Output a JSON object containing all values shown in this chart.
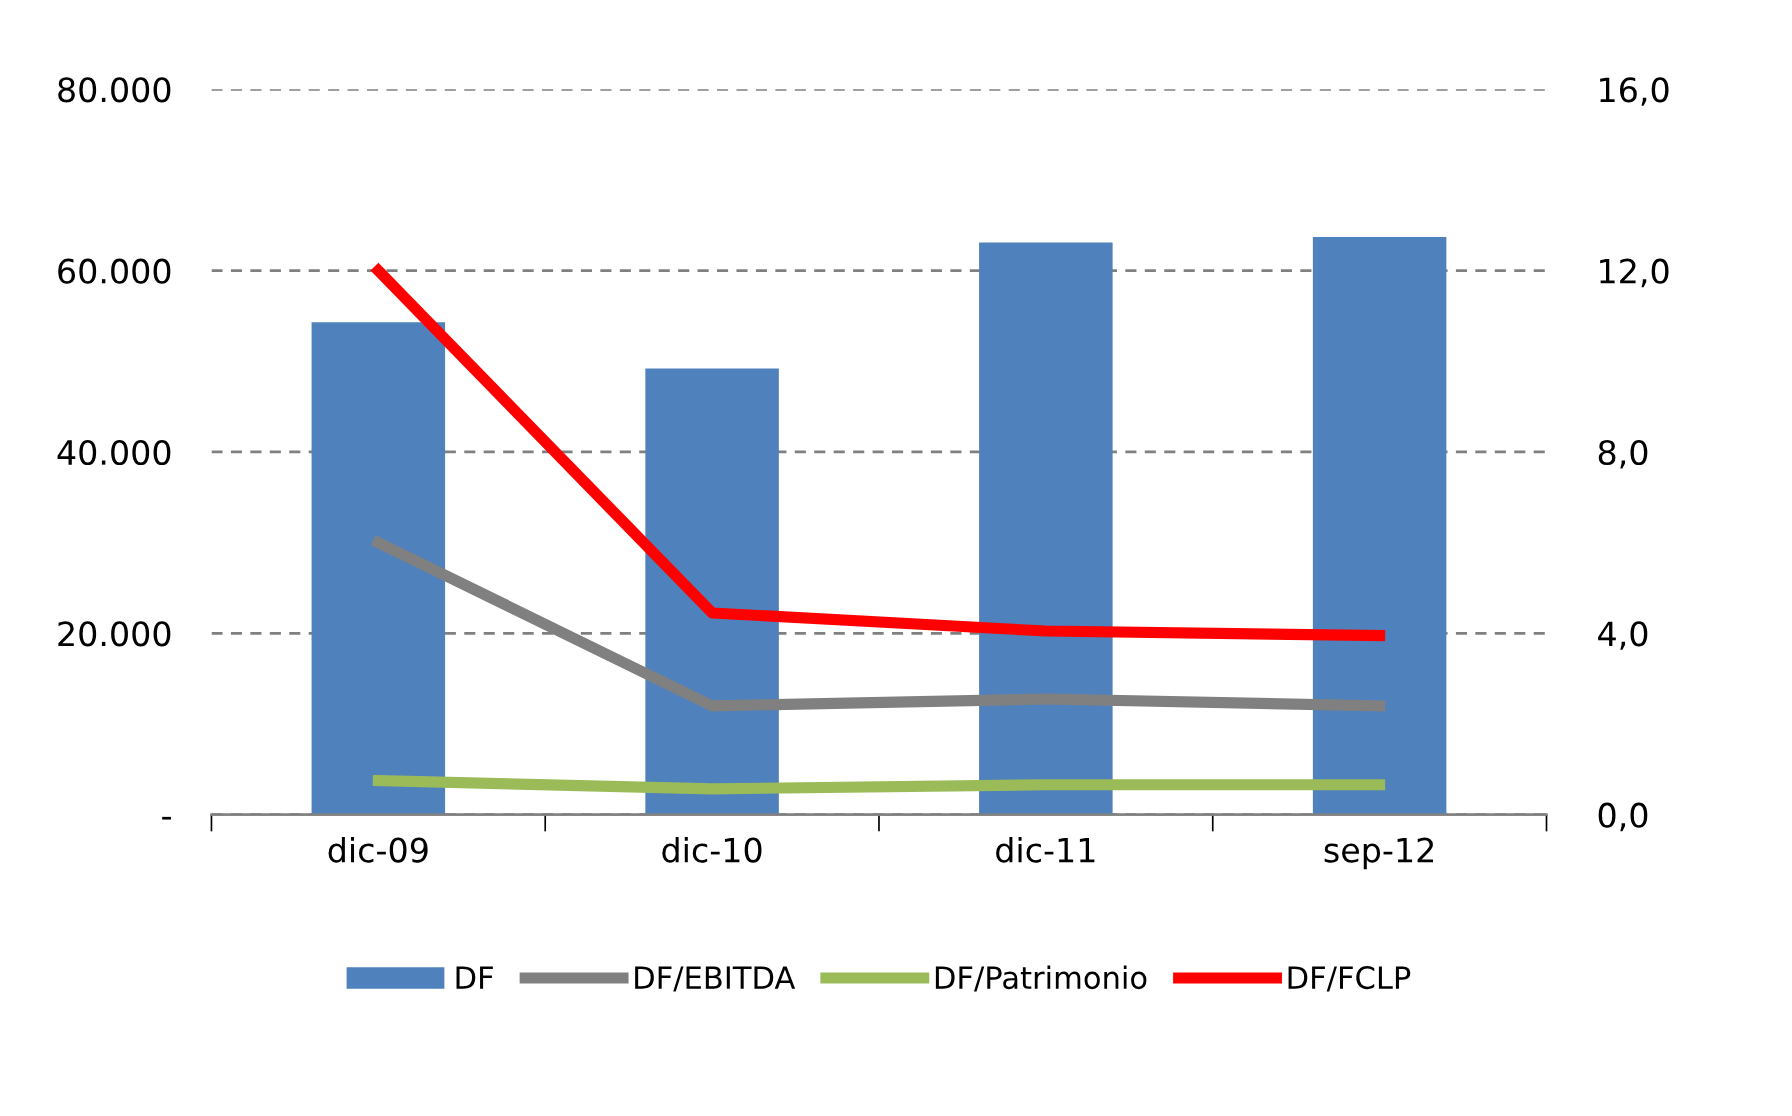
{
  "chart_data": {
    "type": "bar",
    "categories": [
      "dic-09",
      "dic-10",
      "dic-11",
      "sep-12"
    ],
    "series": [
      {
        "name": "DF",
        "color": "#4f81bd",
        "values": [
          54300,
          49200,
          63100,
          63700
        ]
      },
      {
        "name": "DF/EBITDA",
        "type": "line",
        "axis": "y2",
        "color": "#808080",
        "values": [
          6.0,
          2.4,
          2.55,
          2.4
        ]
      },
      {
        "name": "DF/Patrimonio",
        "type": "line",
        "axis": "y2",
        "color": "#9bbb59",
        "values": [
          0.75,
          0.57,
          0.66,
          0.66
        ]
      },
      {
        "name": "DF/FCLP",
        "type": "line",
        "axis": "y2",
        "color": "#ff0000",
        "values": [
          12.0,
          4.45,
          4.05,
          3.95
        ]
      }
    ],
    "ylim": [
      0,
      80000
    ],
    "yticks": [
      {
        "value": 0,
        "label": "-"
      },
      {
        "value": 20000,
        "label": "20.000"
      },
      {
        "value": 40000,
        "label": "40.000"
      },
      {
        "value": 60000,
        "label": "60.000"
      },
      {
        "value": 80000,
        "label": "80.000"
      }
    ],
    "y2lim": [
      0,
      16
    ],
    "y2ticks": [
      {
        "value": 0,
        "label": "0,0"
      },
      {
        "value": 4,
        "label": "4,0"
      },
      {
        "value": 8,
        "label": "8,0"
      },
      {
        "value": 12,
        "label": "12,0"
      },
      {
        "value": 16,
        "label": "16,0"
      }
    ],
    "grid": "y",
    "legend": "bottom",
    "marker": "none",
    "line_style": "solid"
  }
}
